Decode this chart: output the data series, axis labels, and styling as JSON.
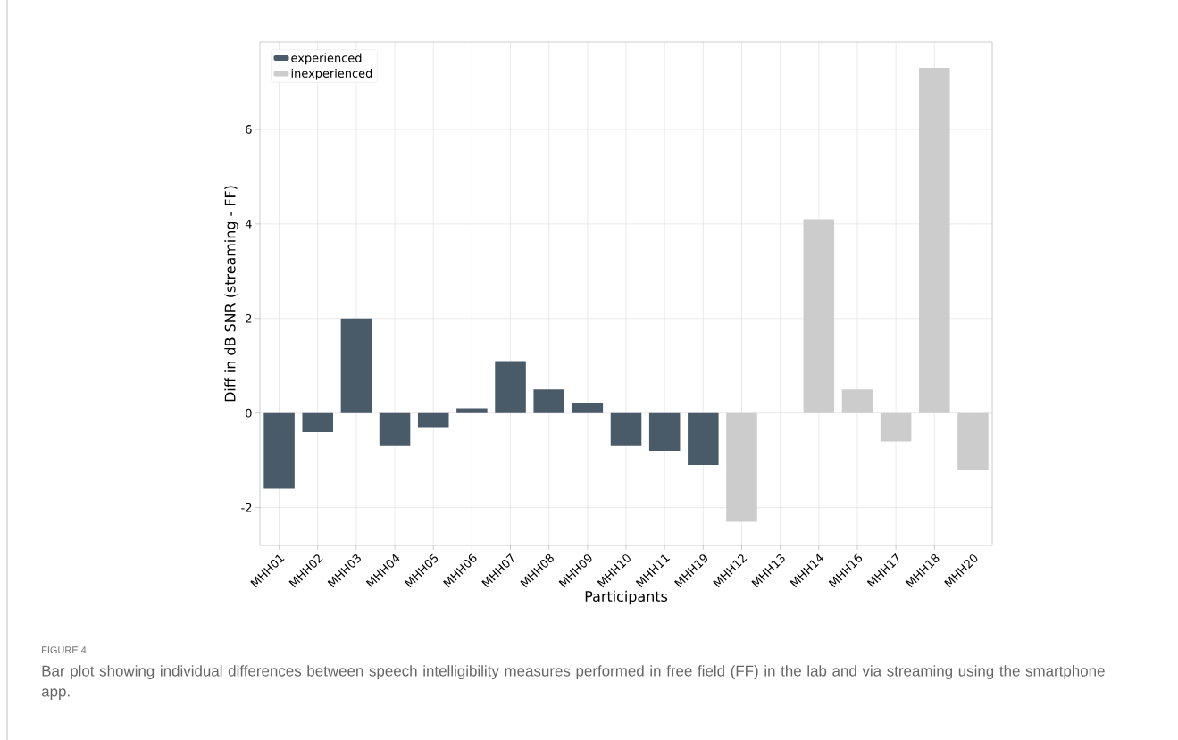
{
  "chart_data": {
    "type": "bar",
    "xlabel": "Participants",
    "ylabel": "Diff in dB SNR (streaming - FF)",
    "categories": [
      "MHH01",
      "MHH02",
      "MHH03",
      "MHH04",
      "MHH05",
      "MHH06",
      "MHH07",
      "MHH08",
      "MHH09",
      "MHH10",
      "MHH11",
      "MHH19",
      "MHH12",
      "MHH13",
      "MHH14",
      "MHH16",
      "MHH17",
      "MHH18",
      "MHH20"
    ],
    "series": [
      {
        "name": "experienced",
        "color": "#495a69",
        "values": [
          -1.6,
          -0.4,
          2.0,
          -0.7,
          -0.3,
          0.1,
          1.1,
          0.5,
          0.2,
          -0.7,
          -0.8,
          -1.1,
          null,
          null,
          null,
          null,
          null,
          null,
          null
        ]
      },
      {
        "name": "inexperienced",
        "color": "#cccccc",
        "values": [
          null,
          null,
          null,
          null,
          null,
          null,
          null,
          null,
          null,
          null,
          null,
          null,
          -2.3,
          0,
          4.1,
          0.5,
          -0.6,
          7.3,
          -1.2
        ]
      }
    ],
    "ylim": [
      -2.8,
      7.85
    ],
    "yticks": [
      -2,
      0,
      2,
      4,
      6
    ],
    "grid": true,
    "legend": "top left",
    "annotations": [
      "FIGURE 4",
      "Bar plot showing individual differences between speech intelligibility measures performed in free field (FF) in the lab and via streaming using the smartphone app."
    ]
  }
}
